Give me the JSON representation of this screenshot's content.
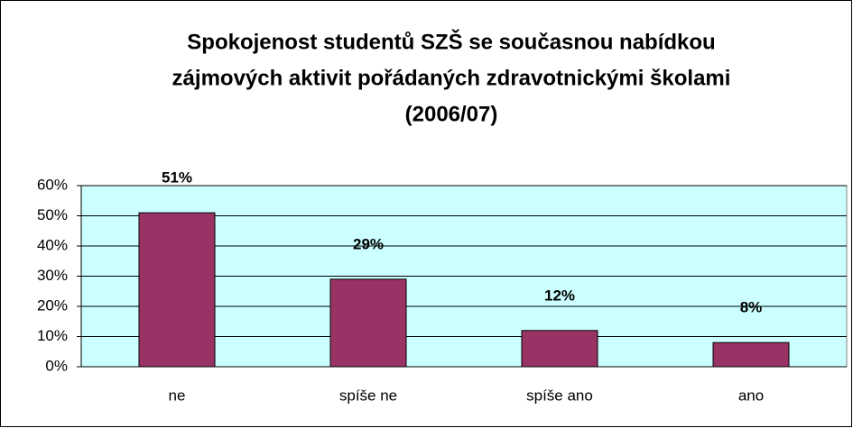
{
  "chart_data": {
    "type": "bar",
    "title": [
      "Spokojenost studentů SZŠ se současnou nabídkou",
      "zájmových aktivit pořádaných zdravotnickými školami",
      "(2006/07)"
    ],
    "categories": [
      "ne",
      "spíše ne",
      "spíše ano",
      "ano"
    ],
    "values": [
      51,
      29,
      12,
      8
    ],
    "value_labels": [
      "51%",
      "29%",
      "12%",
      "8%"
    ],
    "color": "#993366",
    "ylim": [
      0,
      60
    ],
    "yticks": [
      {
        "value": 0,
        "label": "0%"
      },
      {
        "value": 10,
        "label": "10%"
      },
      {
        "value": 20,
        "label": "20%"
      },
      {
        "value": 30,
        "label": "30%"
      },
      {
        "value": 40,
        "label": "40%"
      },
      {
        "value": 50,
        "label": "50%"
      },
      {
        "value": 60,
        "label": "60%"
      }
    ],
    "grid": true
  }
}
